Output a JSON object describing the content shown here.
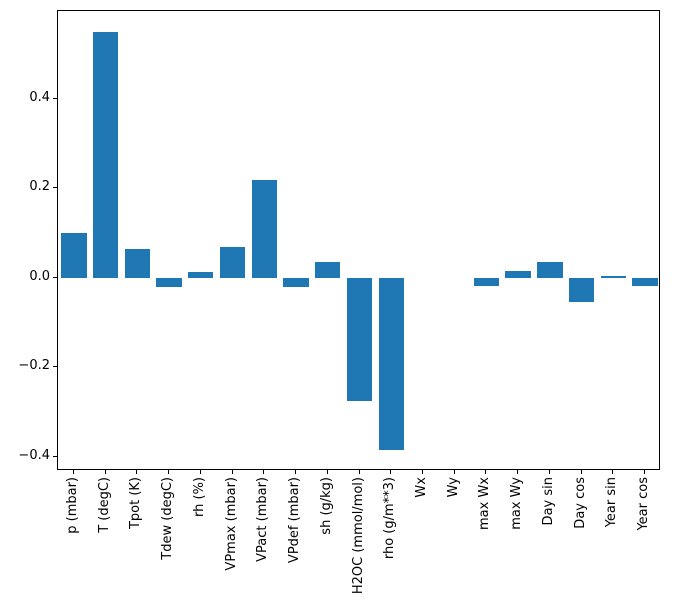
{
  "chart_data": {
    "type": "bar",
    "title": "",
    "xlabel": "",
    "ylabel": "",
    "grid": false,
    "legend": null,
    "bar_color": "#1f77b4",
    "axis_color": "#000000",
    "categories": [
      "p (mbar)",
      "T (degC)",
      "Tpot (K)",
      "Tdew (degC)",
      "rh (%)",
      "VPmax (mbar)",
      "VPact (mbar)",
      "VPdef (mbar)",
      "sh (g/kg)",
      "H2OC (mmol/mol)",
      "rho (g/m**3)",
      "Wx",
      "Wy",
      "max Wx",
      "max Wy",
      "Day sin",
      "Day cos",
      "Year sin",
      "Year cos"
    ],
    "values": [
      0.1,
      0.55,
      0.065,
      -0.02,
      0.013,
      0.068,
      0.22,
      -0.02,
      0.035,
      -0.275,
      -0.385,
      0.0,
      0.0,
      -0.018,
      0.015,
      0.035,
      -0.055,
      0.004,
      -0.018
    ],
    "ylim": [
      -0.432,
      0.597
    ],
    "yticks": [
      -0.4,
      -0.2,
      0.0,
      0.2,
      0.4
    ],
    "ytick_labels": [
      "−0.4",
      "−0.2",
      "0.0",
      "0.2",
      "0.4"
    ]
  }
}
